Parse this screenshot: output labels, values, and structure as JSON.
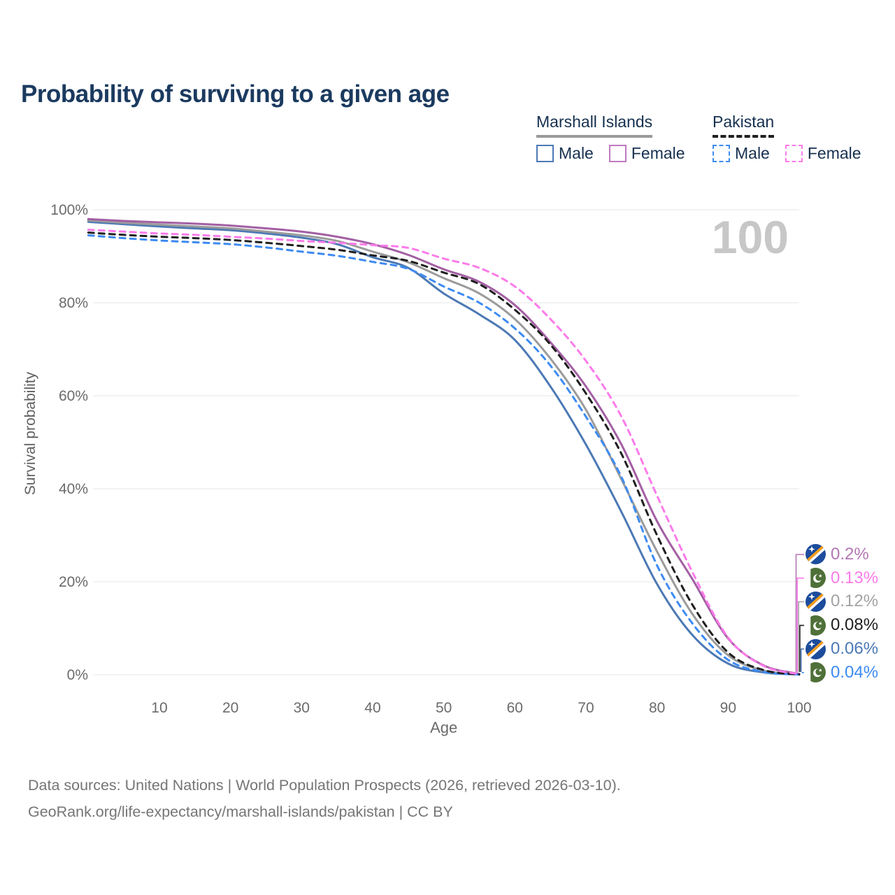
{
  "title": "Probability of surviving to a given age",
  "watermark_age": "100",
  "legend": {
    "groups": [
      {
        "country": "Marshall Islands",
        "line_style": "solid",
        "items": [
          {
            "label": "Male",
            "color": "#4C79B5"
          },
          {
            "label": "Female",
            "color": "#BF7AC0"
          }
        ]
      },
      {
        "country": "Pakistan",
        "line_style": "dashed",
        "items": [
          {
            "label": "Male",
            "color": "#3E8BF2"
          },
          {
            "label": "Female",
            "color": "#FB7BEA"
          }
        ]
      }
    ]
  },
  "chart_data": {
    "type": "line",
    "title": "Probability of surviving to a given age",
    "xlabel": "Age",
    "ylabel": "Survival probability",
    "xlim": [
      0,
      100
    ],
    "ylim": [
      0,
      100
    ],
    "grid": true,
    "x_ticks": [
      10,
      20,
      30,
      40,
      50,
      60,
      70,
      80,
      90,
      100
    ],
    "y_ticks": [
      0,
      20,
      40,
      60,
      80,
      100
    ],
    "y_tick_suffix": "%",
    "x": [
      0,
      5,
      10,
      15,
      20,
      25,
      30,
      35,
      40,
      45,
      50,
      55,
      60,
      65,
      70,
      75,
      80,
      85,
      90,
      95,
      100
    ],
    "series": [
      {
        "id": "marshall-islands-male",
        "name": "Marshall Islands Male",
        "color": "#4C79B5",
        "dashed": false,
        "values": [
          97.4,
          96.9,
          96.4,
          96.0,
          95.6,
          94.9,
          94.0,
          92.6,
          89.8,
          87.5,
          82.0,
          77.5,
          72.0,
          62.0,
          49.5,
          35.0,
          19.5,
          8.5,
          2.4,
          0.5,
          0.06
        ]
      },
      {
        "id": "marshall-islands-both",
        "name": "Marshall Islands Both sexes",
        "color": "#9B9B9B",
        "dashed": false,
        "values": [
          97.7,
          97.2,
          96.8,
          96.4,
          96.0,
          95.3,
          94.5,
          93.3,
          91.0,
          88.7,
          85.3,
          82.0,
          76.5,
          68.0,
          57.0,
          42.0,
          26.5,
          13.0,
          4.2,
          0.9,
          0.12
        ]
      },
      {
        "id": "marshall-islands-female",
        "name": "Marshall Islands Female",
        "color": "#A35FA3",
        "dashed": false,
        "values": [
          98.0,
          97.6,
          97.3,
          97.0,
          96.6,
          96.0,
          95.3,
          94.2,
          92.6,
          90.3,
          87.2,
          84.5,
          79.5,
          71.5,
          62.0,
          49.5,
          33.0,
          20.5,
          7.8,
          2.0,
          0.2
        ]
      },
      {
        "id": "pakistan-male",
        "name": "Pakistan Male",
        "color": "#3E8BF2",
        "dashed": true,
        "values": [
          94.5,
          93.9,
          93.4,
          93.0,
          92.6,
          91.9,
          91.0,
          90.1,
          88.8,
          87.3,
          83.5,
          80.0,
          74.5,
          66.5,
          55.5,
          42.5,
          23.5,
          11.0,
          3.2,
          0.6,
          0.04
        ]
      },
      {
        "id": "pakistan-both",
        "name": "Pakistan Both sexes",
        "color": "#1F1F1F",
        "dashed": true,
        "values": [
          95.1,
          94.6,
          94.2,
          93.9,
          93.5,
          92.9,
          92.2,
          91.4,
          90.2,
          89.0,
          86.5,
          84.0,
          78.5,
          71.0,
          60.5,
          47.5,
          30.0,
          15.0,
          4.8,
          1.0,
          0.08
        ]
      },
      {
        "id": "pakistan-female",
        "name": "Pakistan Female",
        "color": "#FB7BEA",
        "dashed": true,
        "values": [
          95.7,
          95.3,
          94.9,
          94.6,
          94.2,
          93.8,
          93.3,
          92.9,
          92.4,
          91.8,
          89.5,
          87.5,
          83.5,
          76.5,
          67.5,
          55.5,
          38.5,
          22.0,
          8.0,
          1.9,
          0.13
        ]
      }
    ]
  },
  "end_labels": [
    {
      "country": "Marshall Islands",
      "flag": "mh",
      "value": "0.2%",
      "color": "#B277B3"
    },
    {
      "country": "Pakistan",
      "flag": "pk",
      "value": "0.13%",
      "color": "#FB7BEA"
    },
    {
      "country": "Marshall Islands",
      "flag": "mh",
      "value": "0.12%",
      "color": "#A3A3A3"
    },
    {
      "country": "Pakistan",
      "flag": "pk",
      "value": "0.08%",
      "color": "#1F1F1F"
    },
    {
      "country": "Marshall Islands",
      "flag": "mh",
      "value": "0.06%",
      "color": "#4C79B5"
    },
    {
      "country": "Pakistan",
      "flag": "pk",
      "value": "0.04%",
      "color": "#3E8BF2"
    }
  ],
  "footer": {
    "line1": "Data sources: United Nations | World Population Prospects (2026, retrieved 2026-03-10).",
    "line2": "GeoRank.org/life-expectancy/marshall-islands/pakistan | CC BY"
  }
}
